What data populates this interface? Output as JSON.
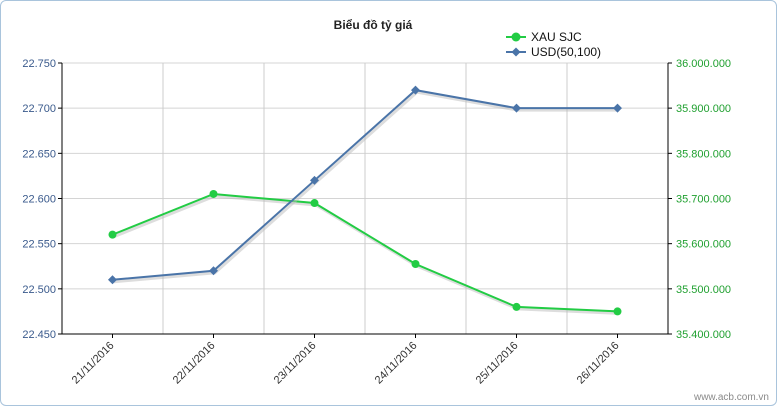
{
  "chart_data": {
    "type": "line",
    "title": "Biểu đồ tỷ giá",
    "categories": [
      "21/11/2016",
      "22/11/2016",
      "23/11/2016",
      "24/11/2016",
      "25/11/2016",
      "26/11/2016"
    ],
    "series": [
      {
        "name": "XAU SJC",
        "axis": "right",
        "color": "#22cc44",
        "marker": "circle",
        "values": [
          35620000,
          35710000,
          35690000,
          35555000,
          35460000,
          35450000
        ]
      },
      {
        "name": "USD(50,100)",
        "axis": "left",
        "color": "#4a74a8",
        "marker": "diamond",
        "values": [
          22510,
          22520,
          22620,
          22720,
          22700,
          22700
        ]
      }
    ],
    "y_left": {
      "range": [
        22450,
        22750
      ],
      "ticks": [
        "22.450",
        "22.500",
        "22.550",
        "22.600",
        "22.650",
        "22.700",
        "22.750"
      ]
    },
    "y_right": {
      "range": [
        35400000,
        36000000
      ],
      "ticks": [
        "35.400.000",
        "35.500.000",
        "35.600.000",
        "35.700.000",
        "35.800.000",
        "35.900.000",
        "36.000.000"
      ]
    },
    "grid": true,
    "legend_position": "top-right"
  },
  "watermark": "www.acb.com.vn"
}
